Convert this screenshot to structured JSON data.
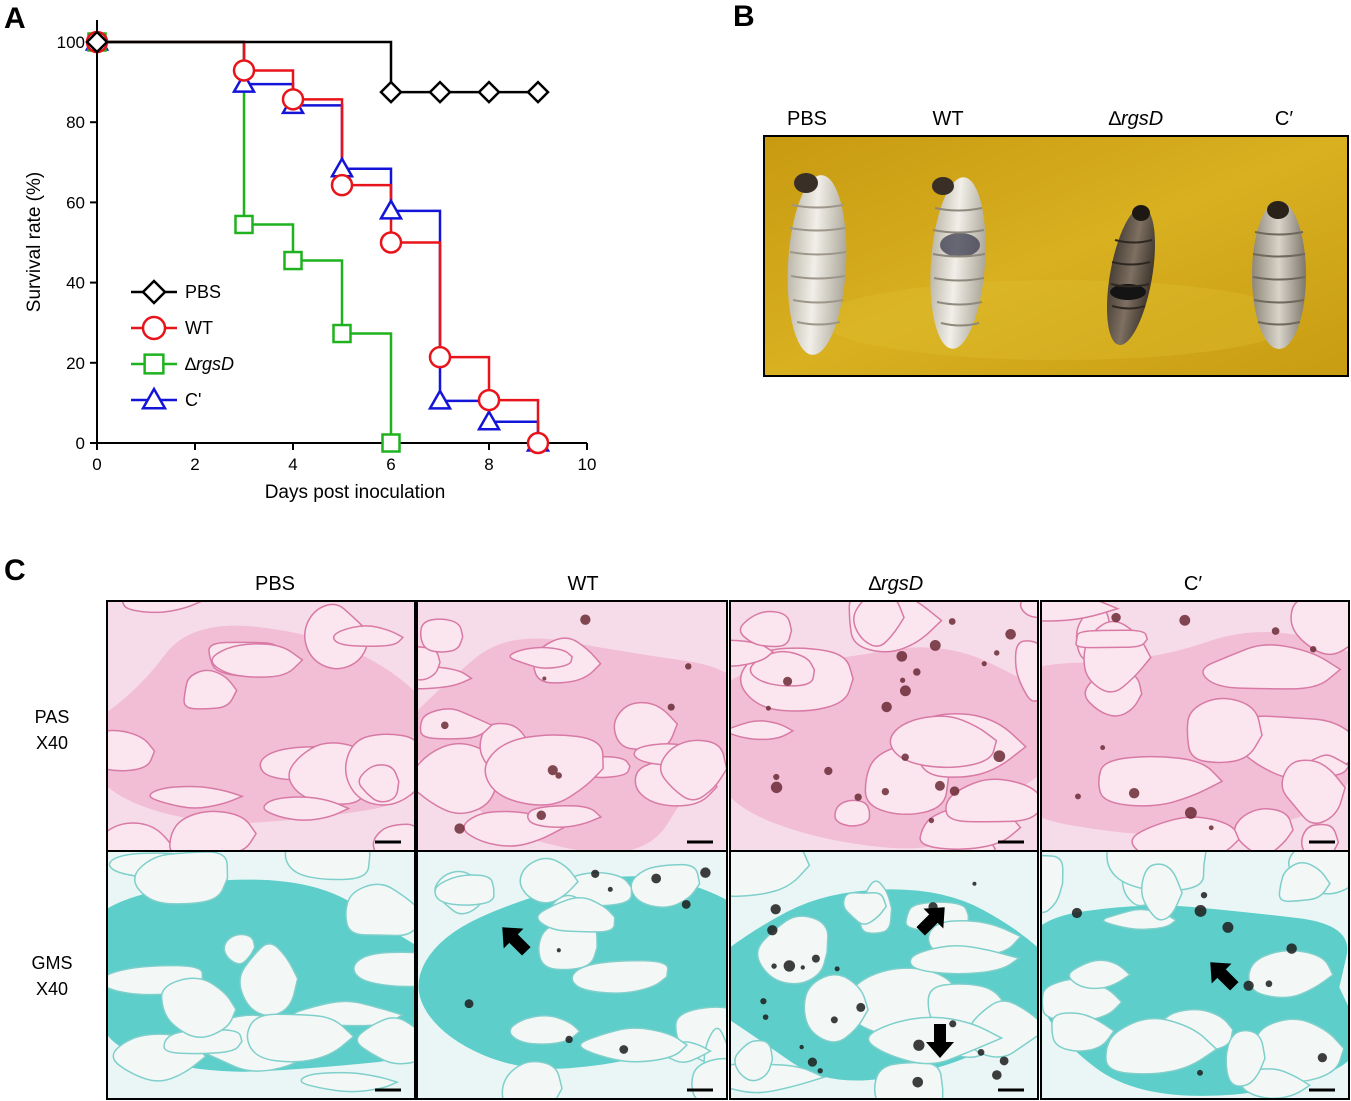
{
  "panels": {
    "a": {
      "letter": "A"
    },
    "b": {
      "letter": "B",
      "labels": [
        "PBS",
        "WT",
        "∆",
        "rgsD",
        "C′"
      ]
    },
    "c": {
      "letter": "C",
      "columns": [
        "PBS",
        "WT",
        "∆",
        "rgsD",
        "C′"
      ],
      "rows": [
        {
          "stain": "PAS",
          "mag": "X40",
          "bg": "#f0b9d2",
          "tissue": "#fbe6ef",
          "edge": "#d87aa5"
        },
        {
          "stain": "GMS",
          "mag": "X40",
          "bg": "#44c7c2",
          "tissue": "#f3f8f7",
          "edge": "#7fcfcb"
        }
      ],
      "arrows_by_panel": {
        "gms_wt": 1,
        "gms_rgsd": 2,
        "gms_c": 1
      }
    }
  },
  "chart_data": {
    "type": "line",
    "step": true,
    "xlabel": "Days post inoculation",
    "ylabel": "Survival rate (%)",
    "xlim": [
      0,
      10
    ],
    "ylim": [
      0,
      100
    ],
    "xticks": [
      "0",
      "2",
      "4",
      "6",
      "8",
      "10"
    ],
    "yticks": [
      "0",
      "20",
      "40",
      "60",
      "80",
      "100"
    ],
    "legend_position": "left-middle",
    "series": [
      {
        "name": "PBS",
        "color": "#000000",
        "marker": "diamond",
        "points": [
          [
            0,
            100
          ],
          [
            6,
            87.5
          ],
          [
            7,
            87.5
          ],
          [
            8,
            87.5
          ],
          [
            9,
            87.5
          ]
        ]
      },
      {
        "name": "WT",
        "color": "#e8141b",
        "marker": "circle",
        "points": [
          [
            0,
            100
          ],
          [
            3,
            92.9
          ],
          [
            4,
            85.7
          ],
          [
            5,
            64.3
          ],
          [
            6,
            50
          ],
          [
            7,
            21.4
          ],
          [
            8,
            10.7
          ],
          [
            9,
            0
          ]
        ]
      },
      {
        "name": "∆",
        "name_italic": "rgsD",
        "color": "#1fb21f",
        "marker": "square",
        "points": [
          [
            0,
            100
          ],
          [
            3,
            54.5
          ],
          [
            4,
            45.5
          ],
          [
            5,
            27.3
          ],
          [
            6,
            0
          ]
        ]
      },
      {
        "name": "C'",
        "color": "#1414d8",
        "marker": "triangle",
        "points": [
          [
            0,
            100
          ],
          [
            3,
            89.5
          ],
          [
            4,
            84.2
          ],
          [
            5,
            68.4
          ],
          [
            6,
            57.9
          ],
          [
            7,
            10.5
          ],
          [
            8,
            5.3
          ],
          [
            9,
            0
          ]
        ]
      }
    ]
  }
}
